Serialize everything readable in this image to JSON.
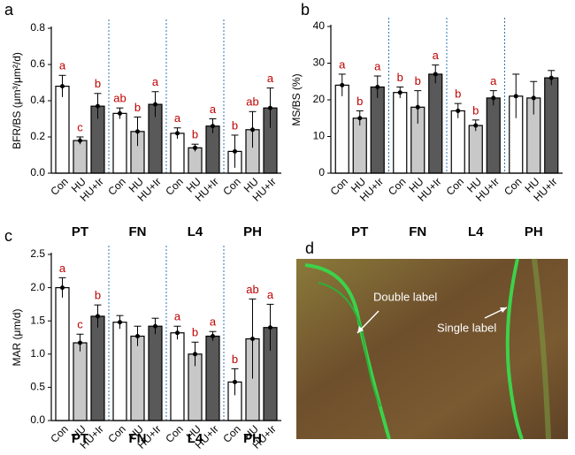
{
  "chart_data": [
    {
      "type": "bar",
      "panel": "a",
      "y_label": "BFR/BS (μm³/μm²/d)",
      "categories": [
        "PT",
        "FN",
        "L4",
        "PH"
      ],
      "ylim": [
        0,
        0.8
      ],
      "yticks": [
        {
          "value": 0,
          "label": "0.0"
        },
        0.2,
        0.4,
        0.6,
        0.8
      ],
      "series": [
        {
          "name": "Con",
          "color": "#ffffff",
          "values": [
            0.48,
            0.33,
            0.22,
            0.12
          ],
          "errors": [
            0.06,
            0.03,
            0.03,
            0.09
          ],
          "letters": [
            "a",
            "ab",
            "a",
            "b"
          ]
        },
        {
          "name": "HU",
          "color": "#c8c8c8",
          "values": [
            0.18,
            0.23,
            0.14,
            0.24
          ],
          "errors": [
            0.02,
            0.08,
            0.02,
            0.1
          ],
          "letters": [
            "c",
            "b",
            "b",
            "ab"
          ]
        },
        {
          "name": "HU+Ir",
          "color": "#595959",
          "values": [
            0.37,
            0.38,
            0.26,
            0.36
          ],
          "errors": [
            0.07,
            0.07,
            0.04,
            0.11
          ],
          "letters": [
            "b",
            "a",
            "a",
            "a"
          ]
        }
      ]
    },
    {
      "type": "bar",
      "panel": "b",
      "y_label": "MS/BS (%)",
      "categories": [
        "PT",
        "FN",
        "L4",
        "PH"
      ],
      "ylim": [
        0,
        40
      ],
      "yticks": [
        0,
        10,
        20,
        30,
        40
      ],
      "series": [
        {
          "name": "Con",
          "color": "#ffffff",
          "values": [
            24,
            22,
            17,
            21
          ],
          "errors": [
            3,
            1.5,
            2,
            6
          ],
          "letters": [
            "a",
            "b",
            "b",
            null
          ]
        },
        {
          "name": "HU",
          "color": "#c8c8c8",
          "values": [
            15,
            18,
            13,
            20.5
          ],
          "errors": [
            2,
            4.5,
            1.5,
            4.5
          ],
          "letters": [
            "b",
            "b",
            "b",
            null
          ]
        },
        {
          "name": "HU+Ir",
          "color": "#595959",
          "values": [
            23.5,
            27,
            20.5,
            26
          ],
          "errors": [
            3,
            2.5,
            2,
            2
          ],
          "letters": [
            "a",
            "a",
            "a",
            null
          ]
        }
      ]
    },
    {
      "type": "bar",
      "panel": "c",
      "y_label": "MAR (μm/d)",
      "categories": [
        "PT",
        "FN",
        "L4",
        "PH"
      ],
      "ylim": [
        0,
        2.5
      ],
      "yticks": [
        {
          "value": 0,
          "label": "0.0"
        },
        0.5,
        {
          "value": 1,
          "label": "1.0"
        },
        1.5,
        {
          "value": 2,
          "label": "2.0"
        },
        2.5
      ],
      "series": [
        {
          "name": "Con",
          "color": "#ffffff",
          "values": [
            2.0,
            1.48,
            1.32,
            0.58
          ],
          "errors": [
            0.15,
            0.1,
            0.1,
            0.2
          ],
          "letters": [
            "a",
            null,
            "a",
            "b"
          ]
        },
        {
          "name": "HU",
          "color": "#c8c8c8",
          "values": [
            1.17,
            1.27,
            1.0,
            1.23
          ],
          "errors": [
            0.13,
            0.15,
            0.18,
            0.6
          ],
          "letters": [
            "c",
            null,
            "b",
            "ab"
          ]
        },
        {
          "name": "HU+Ir",
          "color": "#595959",
          "values": [
            1.57,
            1.42,
            1.27,
            1.4
          ],
          "errors": [
            0.17,
            0.12,
            0.07,
            0.35
          ],
          "letters": [
            "b",
            null,
            "a",
            "a"
          ]
        }
      ]
    }
  ],
  "image": {
    "panel": "d",
    "labels": [
      "Double label",
      "Single label"
    ]
  }
}
